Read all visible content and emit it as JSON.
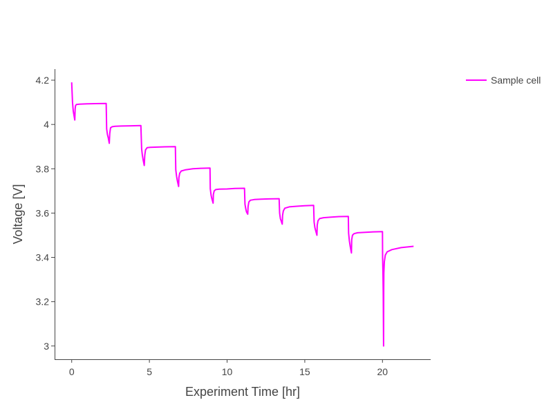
{
  "chart_data": {
    "type": "line",
    "title": "",
    "xlabel": "Experiment Time [hr]",
    "ylabel": "Voltage [V]",
    "xlim": [
      -1.1,
      23.1
    ],
    "ylim": [
      2.94,
      4.25
    ],
    "x_ticks": [
      0,
      5,
      10,
      15,
      20
    ],
    "x_tick_labels": [
      "0",
      "5",
      "10",
      "15",
      "20"
    ],
    "y_ticks": [
      3.0,
      3.2,
      3.4,
      3.6,
      3.8,
      4.0,
      4.2
    ],
    "y_tick_labels": [
      "3",
      "3.2",
      "3.4",
      "3.6",
      "3.8",
      "4",
      "4.2"
    ],
    "grid": false,
    "legend": {
      "position": "top-right",
      "entries": [
        "Sample cell"
      ]
    },
    "series": [
      {
        "name": "Sample cell",
        "color": "#ff00ff",
        "x": [
          0.0,
          0.05,
          0.1,
          0.15,
          0.2,
          0.22,
          0.25,
          0.3,
          0.5,
          1.0,
          1.5,
          2.22,
          2.25,
          2.3,
          2.35,
          2.42,
          2.45,
          2.5,
          2.6,
          2.8,
          3.2,
          3.8,
          4.45,
          4.5,
          4.55,
          4.6,
          4.67,
          4.7,
          4.75,
          4.85,
          5.05,
          5.5,
          6.0,
          6.67,
          6.7,
          6.75,
          6.8,
          6.88,
          6.9,
          6.95,
          7.05,
          7.3,
          7.8,
          8.3,
          8.9,
          8.92,
          8.97,
          9.02,
          9.1,
          9.12,
          9.17,
          9.27,
          9.5,
          10.0,
          10.5,
          11.12,
          11.15,
          11.2,
          11.25,
          11.33,
          11.35,
          11.4,
          11.5,
          11.75,
          12.2,
          12.7,
          13.35,
          13.38,
          13.43,
          13.48,
          13.55,
          13.57,
          13.62,
          13.72,
          14.0,
          14.5,
          15.0,
          15.57,
          15.6,
          15.65,
          15.7,
          15.78,
          15.8,
          15.85,
          15.95,
          16.2,
          16.7,
          17.2,
          17.8,
          17.82,
          17.87,
          17.92,
          18.0,
          18.02,
          18.07,
          18.17,
          18.4,
          18.9,
          19.4,
          20.0,
          20.01,
          20.03,
          20.05,
          20.07,
          20.08,
          20.09,
          20.12,
          20.18,
          20.3,
          20.6,
          21.2,
          22.0
        ],
        "y": [
          4.19,
          4.1,
          4.06,
          4.04,
          4.02,
          4.07,
          4.085,
          4.09,
          4.092,
          4.093,
          4.094,
          4.095,
          3.98,
          3.955,
          3.94,
          3.915,
          3.96,
          3.985,
          3.99,
          3.992,
          3.993,
          3.994,
          3.995,
          3.89,
          3.86,
          3.84,
          3.815,
          3.86,
          3.885,
          3.895,
          3.897,
          3.898,
          3.899,
          3.9,
          3.795,
          3.765,
          3.745,
          3.72,
          3.76,
          3.78,
          3.79,
          3.795,
          3.8,
          3.802,
          3.803,
          3.71,
          3.68,
          3.665,
          3.645,
          3.685,
          3.7,
          3.706,
          3.708,
          3.709,
          3.711,
          3.712,
          3.64,
          3.62,
          3.605,
          3.595,
          3.63,
          3.65,
          3.658,
          3.661,
          3.663,
          3.664,
          3.665,
          3.6,
          3.575,
          3.565,
          3.55,
          3.59,
          3.61,
          3.622,
          3.628,
          3.631,
          3.633,
          3.635,
          3.56,
          3.535,
          3.52,
          3.5,
          3.545,
          3.565,
          3.575,
          3.579,
          3.582,
          3.584,
          3.585,
          3.51,
          3.475,
          3.45,
          3.42,
          3.48,
          3.5,
          3.507,
          3.511,
          3.513,
          3.515,
          3.516,
          3.4,
          3.33,
          3.24,
          3.0,
          3.25,
          3.33,
          3.38,
          3.41,
          3.425,
          3.435,
          3.444,
          3.45
        ]
      }
    ]
  }
}
